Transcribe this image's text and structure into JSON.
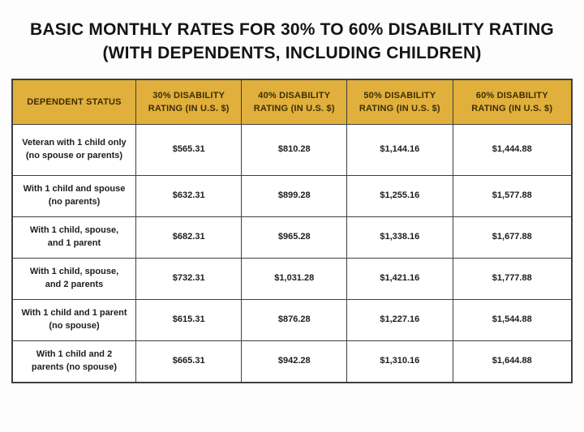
{
  "page": {
    "title_line1": "BASIC MONTHLY RATES FOR 30% TO 60% DISABILITY RATING",
    "title_line2": "(WITH DEPENDENTS, INCLUDING CHILDREN)"
  },
  "colors": {
    "header_bg": "#E1AF3B",
    "header_text": "#3B2F05",
    "grid_border": "#3F3F3F",
    "body_text": "#1D1D1D",
    "page_bg": "#FDFDFD"
  },
  "table": {
    "headers": [
      "DEPENDENT STATUS",
      "30% DISABILITY RATING (IN U.S. $)",
      "40% DISABILITY RATING (IN U.S. $)",
      "50% DISABILITY RATING (IN U.S. $)",
      "60% DISABILITY RATING (IN U.S. $)"
    ],
    "rows": [
      {
        "status": "Veteran with 1 child only (no spouse or parents)",
        "values": [
          "$565.31",
          "$810.28",
          "$1,144.16",
          "$1,444.88"
        ]
      },
      {
        "status": "With 1 child and spouse (no parents)",
        "values": [
          "$632.31",
          "$899.28",
          "$1,255.16",
          "$1,577.88"
        ]
      },
      {
        "status": "With 1 child, spouse, and 1 parent",
        "values": [
          "$682.31",
          "$965.28",
          "$1,338.16",
          "$1,677.88"
        ]
      },
      {
        "status": "With 1 child, spouse, and 2 parents",
        "values": [
          "$732.31",
          "$1,031.28",
          "$1,421.16",
          "$1,777.88"
        ]
      },
      {
        "status": "With 1 child and 1 parent (no spouse)",
        "values": [
          "$615.31",
          "$876.28",
          "$1,227.16",
          "$1,544.88"
        ]
      },
      {
        "status": "With 1 child and 2 parents (no spouse)",
        "values": [
          "$665.31",
          "$942.28",
          "$1,310.16",
          "$1,644.88"
        ]
      }
    ]
  },
  "chart_data": {
    "type": "table",
    "title": "BASIC MONTHLY RATES FOR 30% TO 60% DISABILITY RATING (WITH DEPENDENTS, INCLUDING CHILDREN)",
    "columns": [
      "DEPENDENT STATUS",
      "30% DISABILITY RATING (IN U.S. $)",
      "40% DISABILITY RATING (IN U.S. $)",
      "50% DISABILITY RATING (IN U.S. $)",
      "60% DISABILITY RATING (IN U.S. $)"
    ],
    "rows": [
      [
        "Veteran with 1 child only (no spouse or parents)",
        565.31,
        810.28,
        1144.16,
        1444.88
      ],
      [
        "With 1 child and spouse (no parents)",
        632.31,
        899.28,
        1255.16,
        1577.88
      ],
      [
        "With 1 child, spouse, and 1 parent",
        682.31,
        965.28,
        1338.16,
        1677.88
      ],
      [
        "With 1 child, spouse, and 2 parents",
        732.31,
        1031.28,
        1421.16,
        1777.88
      ],
      [
        "With 1 child and 1 parent (no spouse)",
        615.31,
        876.28,
        1227.16,
        1544.88
      ],
      [
        "With 1 child and 2 parents (no spouse)",
        665.31,
        942.28,
        1310.16,
        1644.88
      ]
    ],
    "layout": {
      "header_bg": "#E1AF3B",
      "grid": true,
      "currency": "USD"
    }
  }
}
